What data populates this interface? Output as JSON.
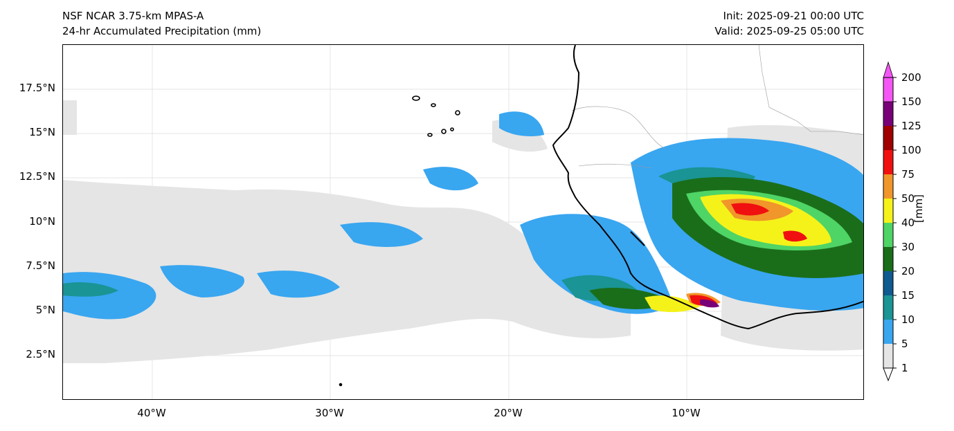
{
  "header": {
    "model_title": "NSF NCAR 3.75-km MPAS-A",
    "field_title": "24-hr Accumulated Precipitation (mm)",
    "init_time": "Init: 2025-09-21 00:00 UTC",
    "valid_time": "Valid: 2025-09-25 05:00 UTC"
  },
  "map": {
    "lat_labels": [
      "17.5°N",
      "15°N",
      "12.5°N",
      "10°N",
      "7.5°N",
      "5°N",
      "2.5°N"
    ],
    "lon_labels": [
      "40°W",
      "30°W",
      "20°W",
      "10°W"
    ],
    "background_color": "#ffffff",
    "coastline_color": "#000000",
    "border_color": "#999999"
  },
  "colorbar": {
    "unit": "[mm]",
    "levels": [
      "1",
      "5",
      "10",
      "15",
      "20",
      "30",
      "40",
      "50",
      "75",
      "100",
      "125",
      "150",
      "200"
    ],
    "colors": [
      "#e5e5e5",
      "#39a6f0",
      "#1a9494",
      "#0f5a8f",
      "#1a6e1a",
      "#4fd466",
      "#f5f21a",
      "#f0962a",
      "#f01010",
      "#a00000",
      "#780078",
      "#f555f5"
    ]
  }
}
